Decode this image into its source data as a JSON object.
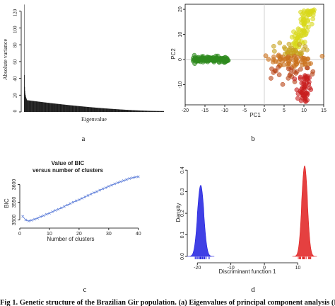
{
  "caption": "Fig 1. Genetic structure of the Brazilian Gir population. (a) Eigenvalues of principal component analysis (P",
  "panels": {
    "a": {
      "letter": "a"
    },
    "b": {
      "letter": "b"
    },
    "c": {
      "letter": "c"
    },
    "d": {
      "letter": "d"
    }
  },
  "chart_data": [
    {
      "panel": "a",
      "type": "bar",
      "xlabel": "Eigenvalue",
      "ylabel": "Absolute variance",
      "ylim": [
        0,
        130
      ],
      "yticks": [
        0,
        20,
        40,
        60,
        80,
        100,
        120
      ],
      "n_eigenvalues": 500,
      "leading_values": [
        128,
        44,
        30,
        25,
        22,
        20,
        18,
        17,
        16,
        15
      ],
      "tail_start": 14,
      "tail_end": 1
    },
    {
      "panel": "b",
      "type": "scatter",
      "xlabel": "PC1",
      "ylabel": "PC2",
      "xlim": [
        -20,
        15
      ],
      "ylim": [
        -18,
        22
      ],
      "xticks": [
        -20,
        -15,
        -10,
        -5,
        0,
        5,
        10,
        15
      ],
      "yticks": [
        -10,
        0,
        10,
        20
      ],
      "reference_lines": {
        "x": 0,
        "y": 0
      },
      "colors": {
        "green": "#2e8b1e",
        "yellow": "#d8d81a",
        "orange": "#c9701a",
        "red": "#c81e1e"
      },
      "clusters": [
        {
          "color": "green",
          "x_range": [
            -18,
            -9
          ],
          "y_range": [
            -1.2,
            1.6
          ],
          "count": 130
        },
        {
          "color": "yellow",
          "x_range": [
            7,
            13
          ],
          "y_range": [
            5,
            20
          ],
          "count": 80
        },
        {
          "color": "orange",
          "x_range": [
            0,
            12
          ],
          "y_range": [
            -8,
            8
          ],
          "count": 110
        },
        {
          "color": "red",
          "x_range": [
            8,
            12
          ],
          "y_range": [
            -17,
            -6
          ],
          "count": 50
        }
      ]
    },
    {
      "panel": "c",
      "type": "line",
      "title": "Value of BIC\nversus number of clusters",
      "xlabel": "Number of clusters",
      "ylabel": "BIC",
      "xlim": [
        0,
        41
      ],
      "ylim": [
        3485,
        3625
      ],
      "xticks": [
        0,
        10,
        20,
        30,
        40
      ],
      "yticks": [
        3500,
        3550,
        3600
      ],
      "x": [
        1,
        2,
        3,
        4,
        5,
        6,
        7,
        8,
        9,
        10,
        11,
        12,
        13,
        14,
        15,
        16,
        17,
        18,
        19,
        20,
        21,
        22,
        23,
        24,
        25,
        26,
        27,
        28,
        29,
        30,
        31,
        32,
        33,
        34,
        35,
        36,
        37,
        38,
        39,
        40
      ],
      "y": [
        3510,
        3500,
        3497,
        3499,
        3502,
        3505,
        3509,
        3512,
        3516,
        3519,
        3523,
        3527,
        3530,
        3534,
        3538,
        3542,
        3546,
        3550,
        3554,
        3557,
        3561,
        3565,
        3569,
        3573,
        3577,
        3580,
        3584,
        3588,
        3591,
        3595,
        3598,
        3602,
        3605,
        3608,
        3611,
        3614,
        3617,
        3619,
        3621,
        3622
      ],
      "color": "#5a7bd8"
    },
    {
      "panel": "d",
      "type": "area",
      "xlabel": "Discriminant function 1",
      "ylabel": "Density",
      "xlim": [
        -23,
        16
      ],
      "ylim": [
        0,
        0.44
      ],
      "xticks": [
        -20,
        -10,
        0,
        10
      ],
      "yticks": [
        0.0,
        0.1,
        0.2,
        0.3,
        0.4
      ],
      "series": [
        {
          "color": "#1f1fe0",
          "mean": -19,
          "sd": 1.0,
          "peak": 0.33
        },
        {
          "color": "#e01f1f",
          "mean": 12,
          "sd": 0.9,
          "peak": 0.42
        }
      ]
    }
  ]
}
